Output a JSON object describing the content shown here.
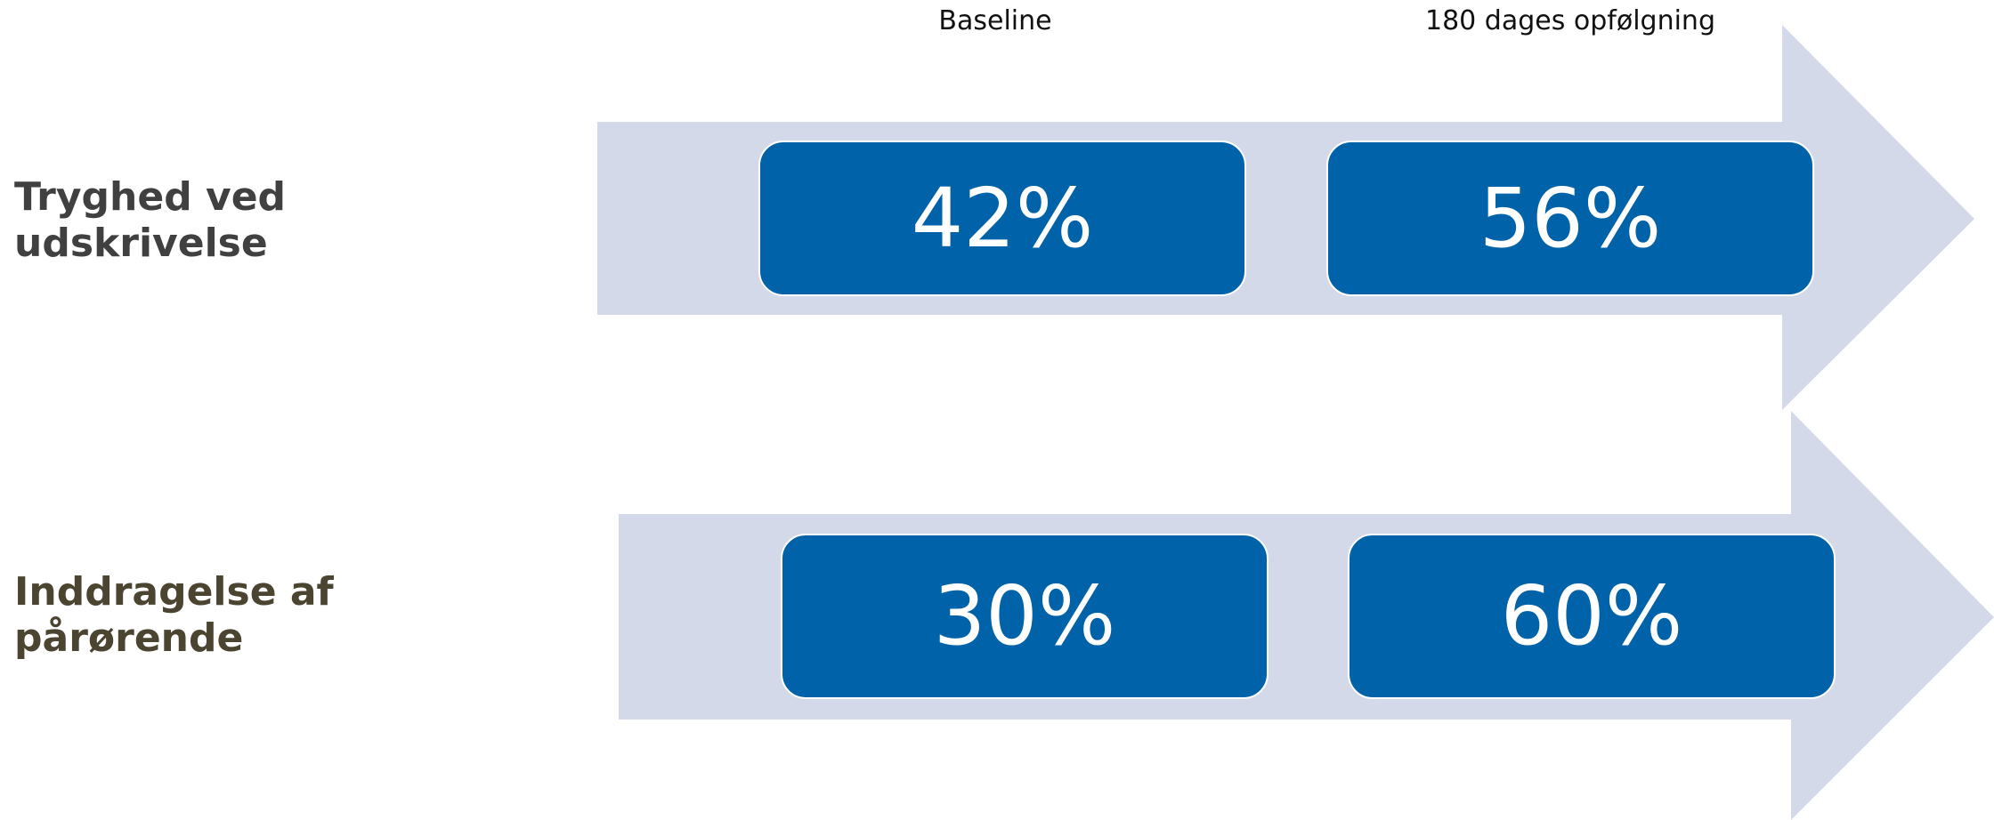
{
  "columns": {
    "baseline": "Baseline",
    "followup": "180 dages opfølgning"
  },
  "rows": [
    {
      "label": "Tryghed ved\nudskrivelse",
      "label_color": "#404040",
      "baseline": "42%",
      "followup": "56%"
    },
    {
      "label": "Inddragelse af\npårørende",
      "label_color": "#4a4430",
      "baseline": "30%",
      "followup": "60%"
    }
  ],
  "colors": {
    "arrow": "#d3d9e8",
    "box": "#0062a8",
    "box_text": "#ffffff"
  }
}
